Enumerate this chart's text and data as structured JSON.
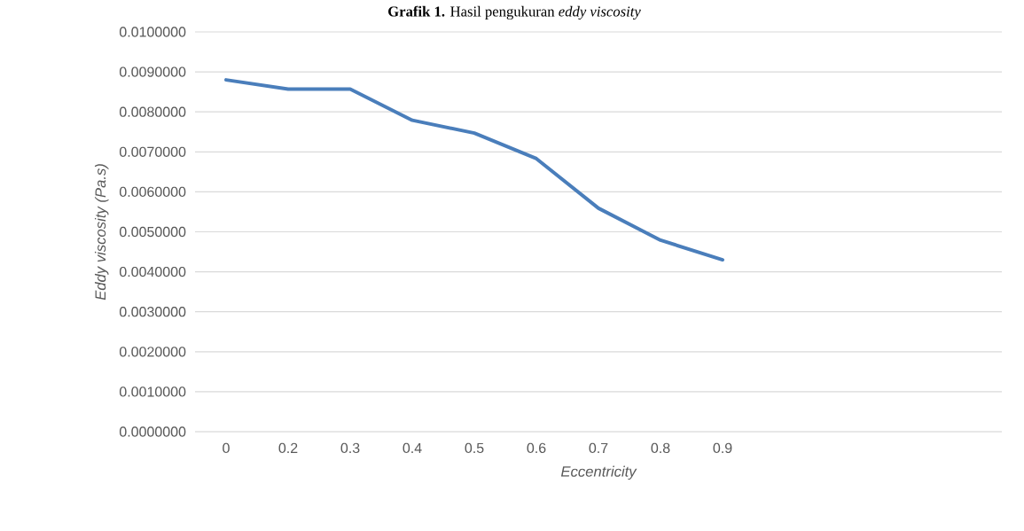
{
  "chart_data": {
    "type": "line",
    "title": "**Grafik 1.** Hasil pengukuran *eddy viscosity*",
    "xlabel": "Eccentricity",
    "ylabel": "Eddy viscosity (Pa.s)",
    "categories": [
      "0",
      "0.2",
      "0.3",
      "0.4",
      "0.5",
      "0.6",
      "0.7",
      "0.8",
      "0.9",
      null,
      null,
      null,
      null
    ],
    "series": [
      {
        "color": "#4a7ebb",
        "values": [
          0.0088,
          0.00857,
          0.00857,
          0.00779,
          0.00747,
          0.00683,
          0.00559,
          0.00479,
          0.0043,
          null,
          null,
          null,
          null
        ]
      }
    ],
    "ylim": [
      0,
      0.01
    ],
    "yticks": [
      {
        "value": 0,
        "label": "0.0000000"
      },
      {
        "value": 0.001,
        "label": "0.0010000"
      },
      {
        "value": 0.002,
        "label": "0.0020000"
      },
      {
        "value": 0.003,
        "label": "0.0030000"
      },
      {
        "value": 0.004,
        "label": "0.0040000"
      },
      {
        "value": 0.005,
        "label": "0.0050000"
      },
      {
        "value": 0.006,
        "label": "0.0060000"
      },
      {
        "value": 0.007,
        "label": "0.0070000"
      },
      {
        "value": 0.008,
        "label": "0.0080000"
      },
      {
        "value": 0.009,
        "label": "0.0090000"
      },
      {
        "value": 0.01,
        "label": "0.0100000"
      }
    ],
    "grid": "y"
  }
}
